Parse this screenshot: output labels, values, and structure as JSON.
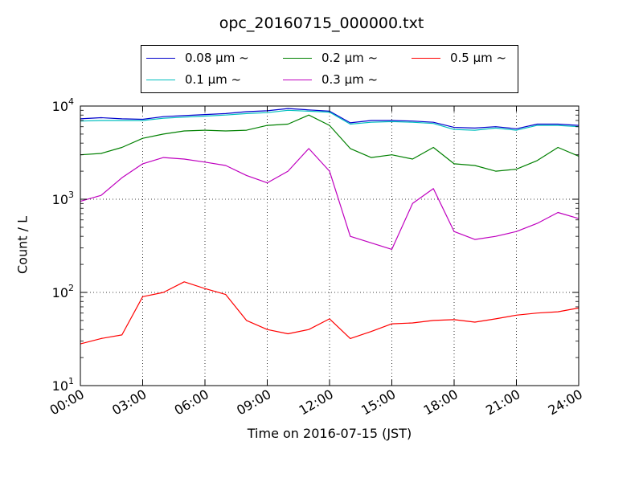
{
  "chart_data": {
    "type": "line",
    "title": "opc_20160715_000000.txt",
    "xlabel": "Time on 2016-07-15 (JST)",
    "ylabel": "Count / L",
    "yscale": "log",
    "ylim": [
      10,
      10000
    ],
    "xlim": [
      "00:00",
      "24:00"
    ],
    "x_ticks": [
      "00:00",
      "03:00",
      "06:00",
      "09:00",
      "12:00",
      "15:00",
      "18:00",
      "21:00",
      "24:00"
    ],
    "y_ticks": [
      {
        "value": 10,
        "base": "10",
        "exp": "1"
      },
      {
        "value": 100,
        "base": "10",
        "exp": "2"
      },
      {
        "value": 1000,
        "base": "10",
        "exp": "3"
      },
      {
        "value": 10000,
        "base": "10",
        "exp": "4"
      }
    ],
    "grid": true,
    "legend_position": "top-center",
    "x": [
      "00:00",
      "01:00",
      "02:00",
      "03:00",
      "04:00",
      "05:00",
      "06:00",
      "07:00",
      "08:00",
      "09:00",
      "10:00",
      "11:00",
      "12:00",
      "13:00",
      "14:00",
      "15:00",
      "16:00",
      "17:00",
      "18:00",
      "19:00",
      "20:00",
      "21:00",
      "22:00",
      "23:00",
      "24:00"
    ],
    "series": [
      {
        "name": "0.08 μm ~",
        "color": "#0000cc",
        "values": [
          7300,
          7500,
          7300,
          7200,
          7700,
          7900,
          8100,
          8300,
          8700,
          8900,
          9400,
          9100,
          8800,
          6600,
          7000,
          7000,
          6900,
          6700,
          5900,
          5800,
          6000,
          5700,
          6400,
          6400,
          6200
        ]
      },
      {
        "name": "0.1 μm ~",
        "color": "#00bfbf",
        "values": [
          6900,
          7000,
          7000,
          7000,
          7400,
          7600,
          7800,
          8000,
          8300,
          8500,
          9000,
          8800,
          8600,
          6400,
          6700,
          6800,
          6700,
          6500,
          5600,
          5500,
          5800,
          5500,
          6200,
          6200,
          6000
        ]
      },
      {
        "name": "0.2 μm ~",
        "color": "#008000",
        "values": [
          3000,
          3100,
          3600,
          4500,
          5000,
          5400,
          5500,
          5400,
          5500,
          6200,
          6400,
          8000,
          6200,
          3500,
          2800,
          3000,
          2700,
          3600,
          2400,
          2300,
          2000,
          2100,
          2600,
          3600,
          2900
        ]
      },
      {
        "name": "0.3 μm ~",
        "color": "#bf00bf",
        "values": [
          950,
          1100,
          1700,
          2400,
          2800,
          2700,
          2500,
          2300,
          1800,
          1500,
          2000,
          3500,
          2000,
          400,
          340,
          290,
          900,
          1300,
          450,
          370,
          400,
          450,
          550,
          720,
          620
        ]
      },
      {
        "name": "0.5 μm ~",
        "color": "#ff0000",
        "values": [
          28,
          32,
          35,
          90,
          100,
          130,
          110,
          95,
          50,
          40,
          36,
          40,
          52,
          32,
          38,
          46,
          47,
          50,
          51,
          48,
          52,
          57,
          60,
          62,
          68
        ]
      }
    ]
  }
}
